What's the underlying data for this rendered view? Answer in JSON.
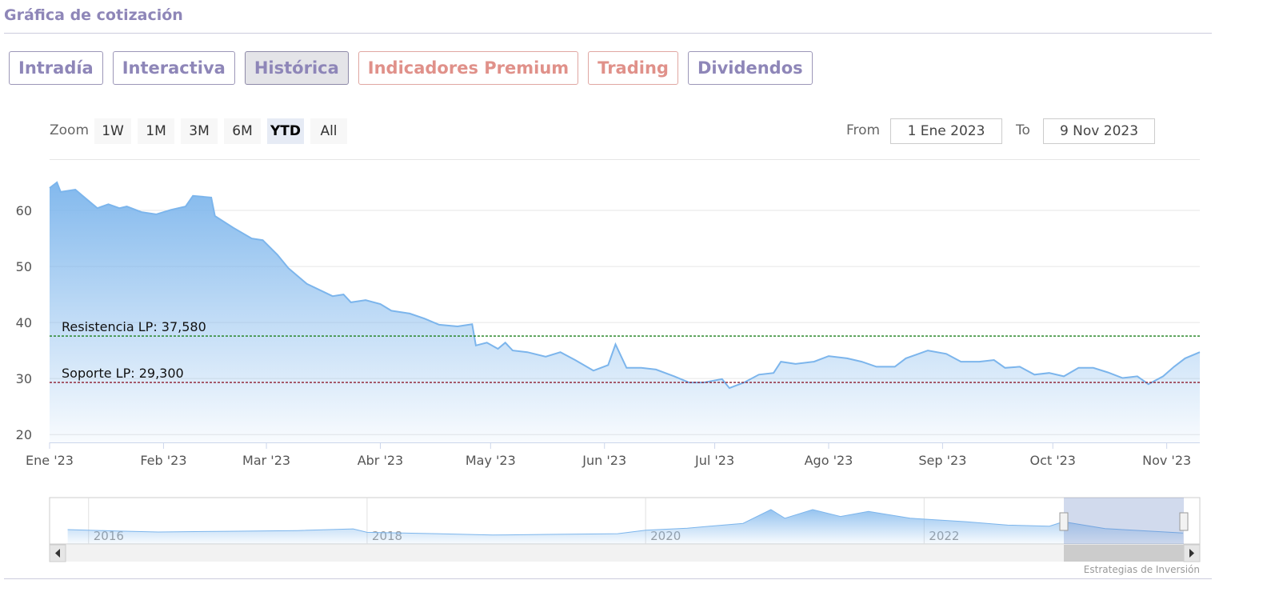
{
  "header": {
    "title": "Gráfica de cotización"
  },
  "tabs": [
    "Intradía",
    "Interactiva",
    "Histórica",
    "Indicadores Premium",
    "Trading",
    "Dividendos"
  ],
  "zoom": {
    "label": "Zoom",
    "buttons": [
      "1W",
      "1M",
      "3M",
      "6M",
      "YTD",
      "All"
    ]
  },
  "range": {
    "from_label": "From",
    "from": "1 Ene 2023",
    "to_label": "To",
    "to": "9 Nov 2023"
  },
  "chart_data": [
    {
      "type": "area",
      "color": "#7cb5ec",
      "grid": true,
      "x": [
        0,
        2,
        3,
        7,
        9,
        13,
        16,
        19,
        21,
        25,
        29,
        33,
        37,
        39,
        44,
        45,
        50,
        55,
        58,
        62,
        65,
        70,
        77,
        80,
        82,
        86,
        90,
        93,
        98,
        102,
        106,
        111,
        115,
        116,
        119,
        122,
        124,
        126,
        130,
        135,
        139,
        143,
        148,
        152,
        154,
        157,
        161,
        165,
        170,
        174,
        178,
        183,
        185,
        189,
        193,
        197,
        199,
        203,
        208,
        212,
        217,
        221,
        225,
        230,
        233,
        239,
        244,
        248,
        253,
        257,
        260,
        264,
        268,
        272,
        276,
        280,
        284,
        288,
        292,
        296,
        299,
        303,
        306,
        309,
        313
      ],
      "values": [
        64,
        65,
        63.3,
        63.7,
        62.6,
        60.4,
        61.1,
        60.4,
        60.7,
        59.7,
        59.3,
        60.1,
        60.7,
        62.6,
        62.3,
        59,
        56.9,
        55,
        54.7,
        52.1,
        49.7,
        46.9,
        44.7,
        45,
        43.6,
        44,
        43.3,
        42.1,
        41.6,
        40.7,
        39.6,
        39.3,
        39.7,
        35.9,
        36.4,
        35.3,
        36.4,
        35,
        34.7,
        33.9,
        34.7,
        33.3,
        31.4,
        32.4,
        36.1,
        31.9,
        31.9,
        31.6,
        30.4,
        29.3,
        29.3,
        29.9,
        28.3,
        29.3,
        30.7,
        31,
        33,
        32.6,
        33,
        34,
        33.6,
        33,
        32.1,
        32.1,
        33.6,
        35,
        34.4,
        33,
        33,
        33.3,
        31.9,
        32.1,
        30.7,
        31,
        30.4,
        31.9,
        31.9,
        31.1,
        30.1,
        30.4,
        29,
        30.4,
        32.1,
        33.6,
        34.7
      ],
      "xlim": [
        0,
        313
      ],
      "ylim": [
        18.6,
        69
      ],
      "xticks": [
        {
          "value": 0,
          "label": "Ene '23"
        },
        {
          "value": 31,
          "label": "Feb '23"
        },
        {
          "value": 59,
          "label": "Mar '23"
        },
        {
          "value": 90,
          "label": "Abr '23"
        },
        {
          "value": 120,
          "label": "May '23"
        },
        {
          "value": 151,
          "label": "Jun '23"
        },
        {
          "value": 181,
          "label": "Jul '23"
        },
        {
          "value": 212,
          "label": "Ago '23"
        },
        {
          "value": 243,
          "label": "Sep '23"
        },
        {
          "value": 273,
          "label": "Oct '23"
        },
        {
          "value": 304,
          "label": "Nov '23"
        }
      ],
      "yticks": [
        20,
        30,
        40,
        50,
        60
      ],
      "plot_lines": [
        {
          "label": "Resistencia LP: 37,580",
          "value": 37.58,
          "color": "#1a7f1a"
        },
        {
          "label": "Soporte LP: 29,300",
          "value": 29.3,
          "color": "#8b1a2b"
        }
      ]
    },
    {
      "type": "area",
      "color": "#7cb5ec",
      "x": [
        2015.85,
        2016.2,
        2016.5,
        2017.0,
        2017.5,
        2017.9,
        2018.0,
        2018.5,
        2018.9,
        2019.3,
        2019.8,
        2020.0,
        2020.3,
        2020.7,
        2020.9,
        2021.0,
        2021.2,
        2021.4,
        2021.6,
        2021.9,
        2022.3,
        2022.6,
        2022.9,
        2023.0,
        2023.3,
        2023.86
      ],
      "values": [
        42,
        38,
        35,
        37,
        39,
        44,
        34,
        30,
        26,
        28,
        30,
        40,
        46,
        60,
        100,
        75,
        100,
        80,
        95,
        75,
        65,
        55,
        52,
        65,
        45,
        32
      ],
      "xlim": [
        2015.72,
        2023.98
      ],
      "ylim": [
        0,
        135
      ],
      "xticks": [
        2016,
        2018,
        2020,
        2022
      ]
    }
  ],
  "credits": "Estrategias de Inversión"
}
